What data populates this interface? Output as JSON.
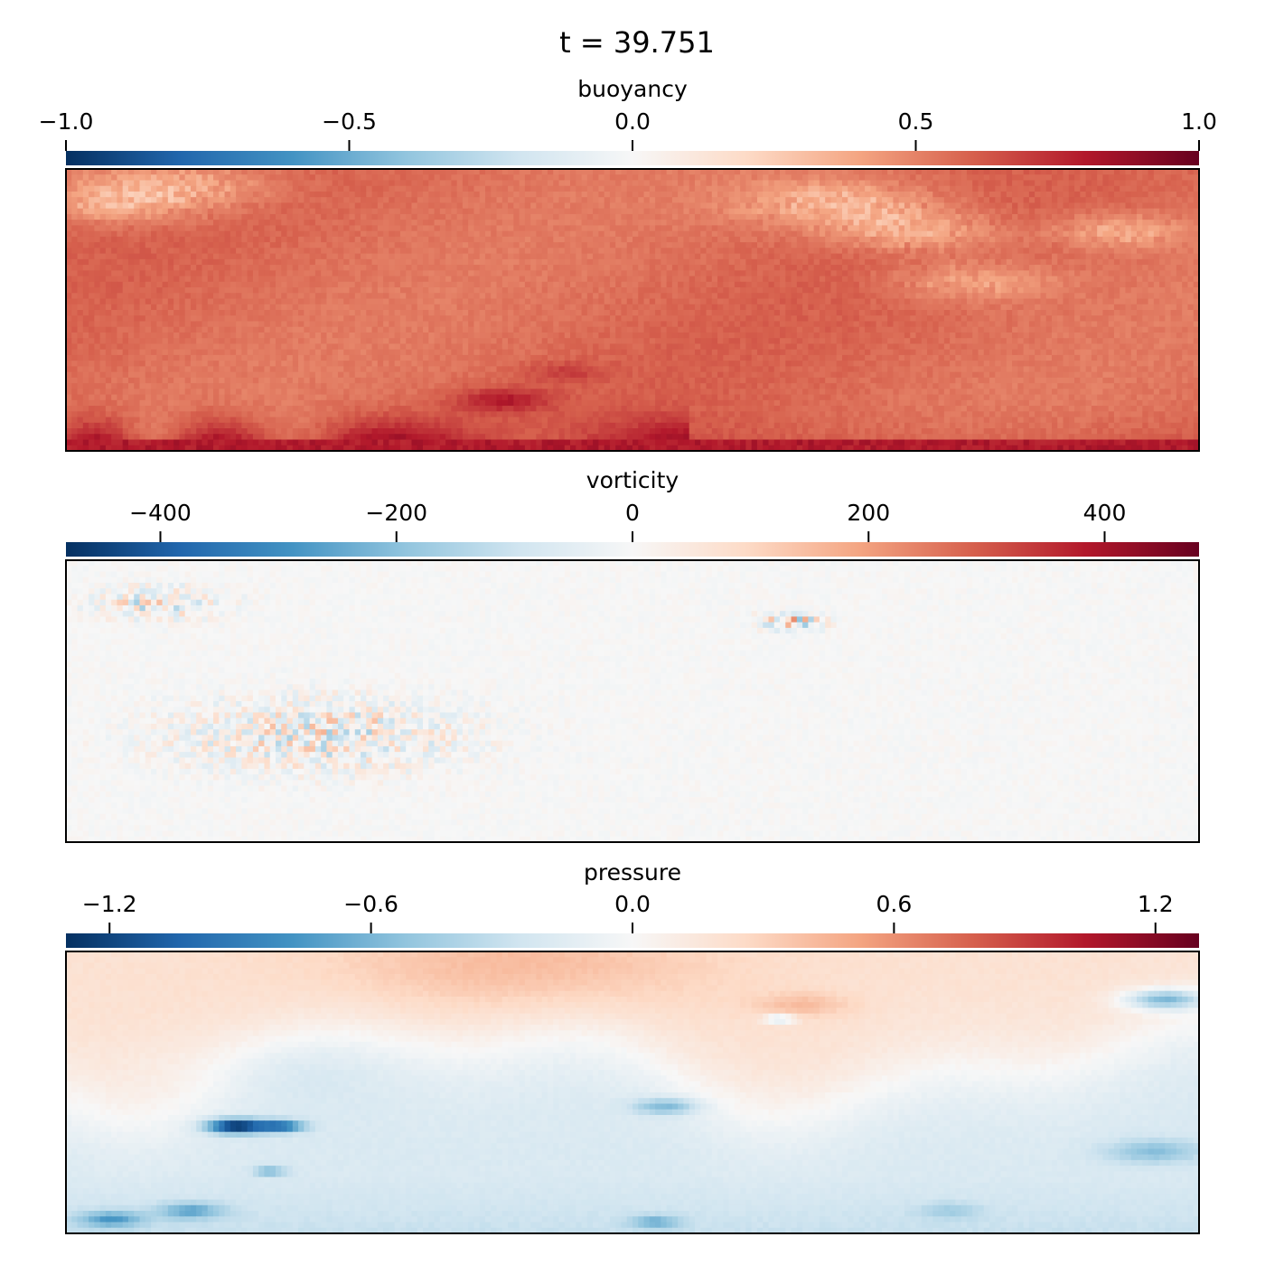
{
  "title": "t = 39.751",
  "chart_data": [
    {
      "type": "heatmap",
      "colorbar_label": "buoyancy",
      "colormap": "RdBu_r",
      "clim": [
        -1.0,
        1.0
      ],
      "colorbar_ticks": [
        {
          "value": -1.0,
          "label": "−1.0"
        },
        {
          "value": -0.5,
          "label": "−0.5"
        },
        {
          "value": 0.0,
          "label": "0.0"
        },
        {
          "value": 0.5,
          "label": "0.5"
        },
        {
          "value": 1.0,
          "label": "1.0"
        }
      ],
      "field_summary": {
        "typical_value": 0.56,
        "bottom_boundary_value": 0.85,
        "top_light_patches_value": 0.3,
        "rising_plume_value": 0.75
      }
    },
    {
      "type": "heatmap",
      "colorbar_label": "vorticity",
      "colormap": "RdBu_r",
      "clim": [
        -480,
        480
      ],
      "colorbar_ticks": [
        {
          "value": -400,
          "label": "−400"
        },
        {
          "value": -200,
          "label": "−200"
        },
        {
          "value": 0,
          "label": "0"
        },
        {
          "value": 200,
          "label": "200"
        },
        {
          "value": 400,
          "label": "400"
        }
      ],
      "field_summary": {
        "typical_value": 0,
        "noise_amplitude": 20,
        "peak_value": 300
      }
    },
    {
      "type": "heatmap",
      "colorbar_label": "pressure",
      "colormap": "RdBu_r",
      "clim": [
        -1.3,
        1.3
      ],
      "colorbar_ticks": [
        {
          "value": -1.2,
          "label": "−1.2"
        },
        {
          "value": -0.6,
          "label": "−0.6"
        },
        {
          "value": 0.0,
          "label": "0.0"
        },
        {
          "value": 0.6,
          "label": "0.6"
        },
        {
          "value": 1.2,
          "label": "1.2"
        }
      ],
      "field_summary": {
        "top_max_value": 0.45,
        "bottom_min_value": -0.35,
        "vortex_core_min_value": -1.2
      }
    }
  ]
}
